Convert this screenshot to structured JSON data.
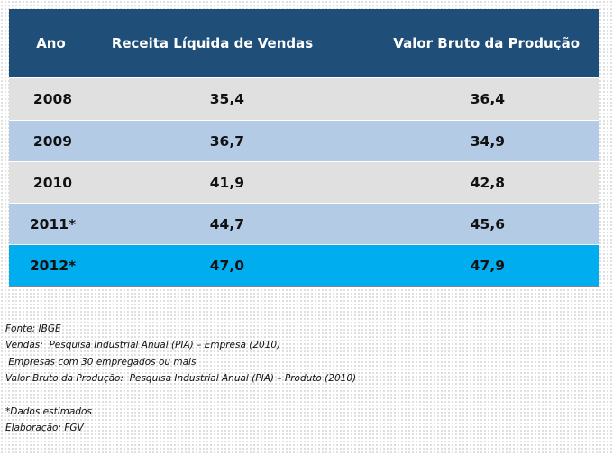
{
  "table": {
    "headers": {
      "year": "Ano",
      "revenue": "Receita Líquida de Vendas",
      "production": "Valor Bruto da Produção"
    },
    "rows": [
      {
        "year": "2008",
        "revenue": "35,4",
        "production": "36,4"
      },
      {
        "year": "2009",
        "revenue": "36,7",
        "production": "34,9"
      },
      {
        "year": "2010",
        "revenue": "41,9",
        "production": "42,8"
      },
      {
        "year": "2011*",
        "revenue": "44,7",
        "production": "45,6"
      },
      {
        "year": "2012*",
        "revenue": "47,0",
        "production": "47,9"
      }
    ]
  },
  "notes": {
    "source": "Fonte: IBGE",
    "sales": "Vendas:  Pesquisa Industrial Anual (PIA) – Empresa (2010)",
    "companies": " Empresas com 30 empregados ou mais",
    "vbp": "Valor Bruto da Produção:  Pesquisa Industrial Anual (PIA) – Produto (2010)",
    "estimated": "*Dados estimados",
    "prepared": "Elaboração: FGV"
  },
  "colors": {
    "header_bg": "#1f4e79",
    "row_gray": "#e0e0e0",
    "row_blue": "#b4cbe6",
    "row_cyan": "#00adef"
  }
}
